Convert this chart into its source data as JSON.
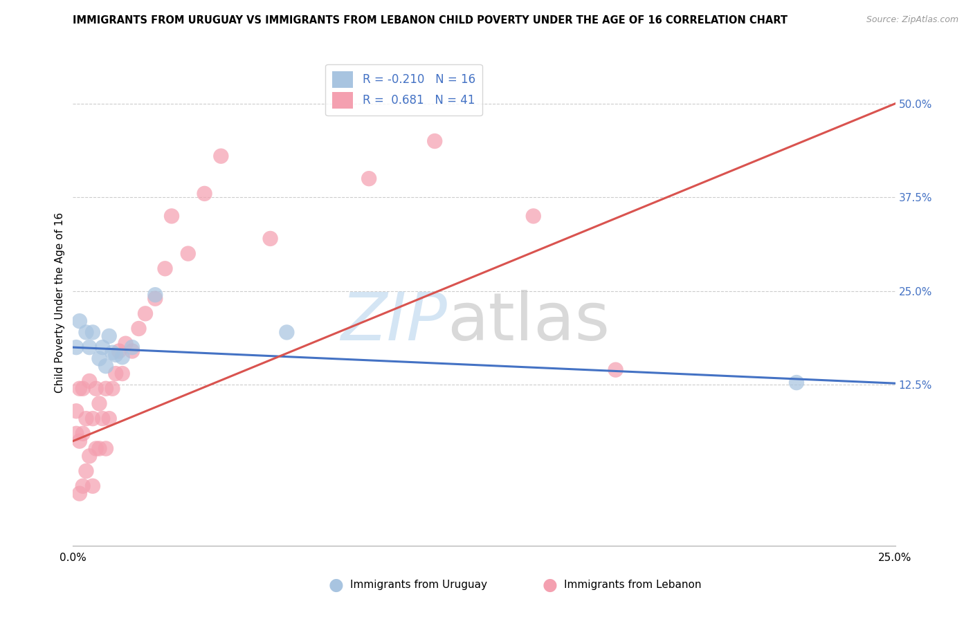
{
  "title": "IMMIGRANTS FROM URUGUAY VS IMMIGRANTS FROM LEBANON CHILD POVERTY UNDER THE AGE OF 16 CORRELATION CHART",
  "source": "Source: ZipAtlas.com",
  "ylabel": "Child Poverty Under the Age of 16",
  "xlim": [
    0.0,
    0.25
  ],
  "ylim": [
    -0.09,
    0.56
  ],
  "r_uruguay": -0.21,
  "n_uruguay": 16,
  "r_lebanon": 0.681,
  "n_lebanon": 41,
  "scatter_color_uruguay": "#a8c4e0",
  "scatter_color_lebanon": "#f4a0b0",
  "line_color_uruguay": "#4472c4",
  "line_color_lebanon": "#d9534f",
  "text_color_blue": "#4472c4",
  "grid_color": "#cccccc",
  "background_color": "#ffffff",
  "ytick_positions": [
    0.0,
    0.125,
    0.25,
    0.375,
    0.5
  ],
  "ytick_labels": [
    "",
    "12.5%",
    "25.0%",
    "37.5%",
    "50.0%"
  ],
  "xtick_positions": [
    0.0,
    0.05,
    0.1,
    0.15,
    0.2,
    0.25
  ],
  "xtick_labels": [
    "0.0%",
    "",
    "",
    "",
    "",
    "25.0%"
  ],
  "uruguay_x": [
    0.001,
    0.002,
    0.004,
    0.005,
    0.006,
    0.008,
    0.009,
    0.01,
    0.011,
    0.012,
    0.013,
    0.015,
    0.018,
    0.025,
    0.065,
    0.22
  ],
  "uruguay_y": [
    0.175,
    0.21,
    0.195,
    0.175,
    0.195,
    0.16,
    0.175,
    0.15,
    0.19,
    0.168,
    0.165,
    0.162,
    0.175,
    0.245,
    0.195,
    0.128
  ],
  "lebanon_x": [
    0.001,
    0.001,
    0.002,
    0.002,
    0.002,
    0.003,
    0.003,
    0.003,
    0.004,
    0.004,
    0.005,
    0.005,
    0.006,
    0.006,
    0.007,
    0.007,
    0.008,
    0.008,
    0.009,
    0.01,
    0.01,
    0.011,
    0.012,
    0.013,
    0.014,
    0.015,
    0.016,
    0.018,
    0.02,
    0.022,
    0.025,
    0.028,
    0.03,
    0.035,
    0.04,
    0.045,
    0.06,
    0.09,
    0.11,
    0.14,
    0.165
  ],
  "lebanon_y": [
    0.06,
    0.09,
    -0.02,
    0.05,
    0.12,
    -0.01,
    0.06,
    0.12,
    0.01,
    0.08,
    0.03,
    0.13,
    -0.01,
    0.08,
    0.04,
    0.12,
    0.04,
    0.1,
    0.08,
    0.04,
    0.12,
    0.08,
    0.12,
    0.14,
    0.17,
    0.14,
    0.18,
    0.17,
    0.2,
    0.22,
    0.24,
    0.28,
    0.35,
    0.3,
    0.38,
    0.43,
    0.32,
    0.4,
    0.45,
    0.35,
    0.145
  ]
}
